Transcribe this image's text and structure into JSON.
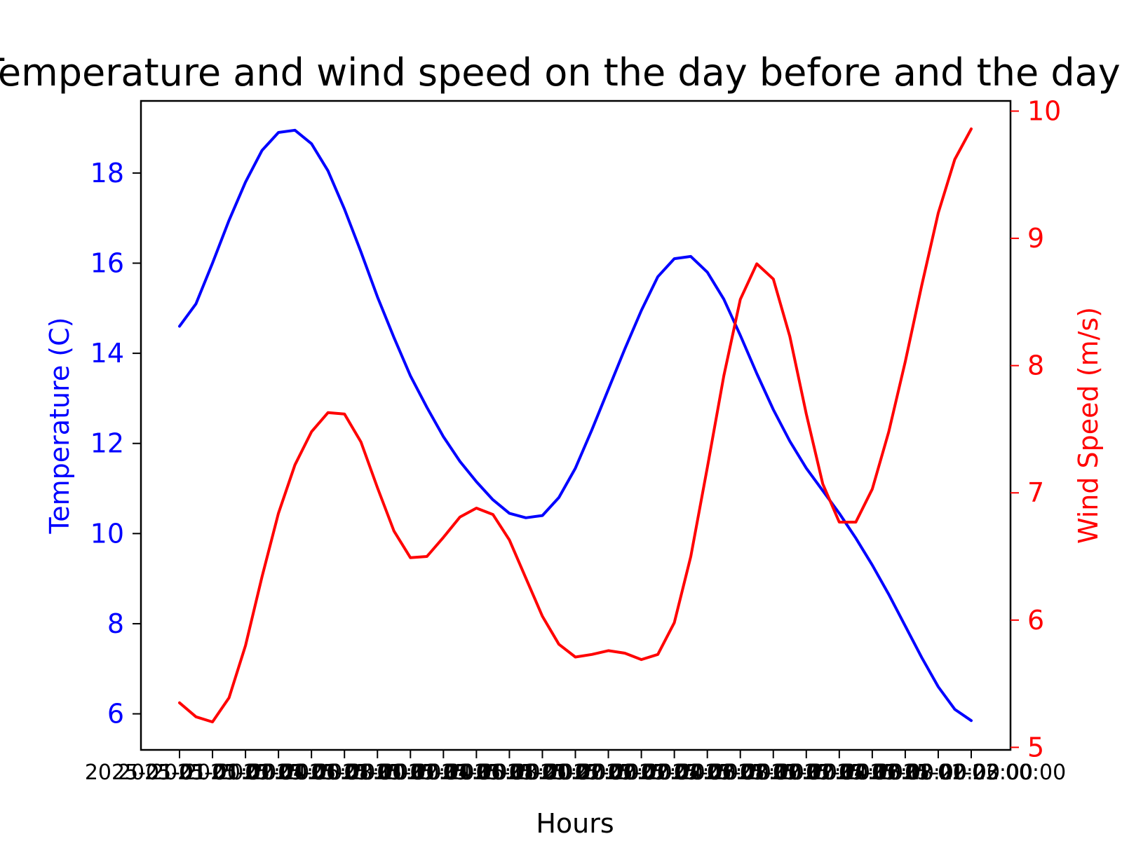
{
  "chart_data": {
    "type": "line",
    "title": "Temperature and wind speed on the day before and the day of",
    "xlabel": "Hours",
    "ylabel_left": "Temperature (C)",
    "ylabel_right": "Wind Speed (m/s)",
    "ylim_left": [
      5.2,
      19.6
    ],
    "ylim_right": [
      4.98,
      10.08
    ],
    "yticks_left": [
      6,
      8,
      10,
      12,
      14,
      16,
      18
    ],
    "yticks_right": [
      5,
      6,
      7,
      8,
      9,
      10
    ],
    "grid": false,
    "legend": "none",
    "colors": {
      "temperature": "#0000ff",
      "wind_speed": "#ff0000",
      "axes": "#000000"
    },
    "x": [
      "2025-01-01 00:00",
      "2025-01-01 01:00",
      "2025-01-01 02:00",
      "2025-01-01 03:00",
      "2025-01-01 04:00",
      "2025-01-01 05:00",
      "2025-01-01 06:00",
      "2025-01-01 07:00",
      "2025-01-01 08:00",
      "2025-01-01 09:00",
      "2025-01-01 10:00",
      "2025-01-01 11:00",
      "2025-01-01 12:00",
      "2025-01-01 13:00",
      "2025-01-01 14:00",
      "2025-01-01 15:00",
      "2025-01-01 16:00",
      "2025-01-01 17:00",
      "2025-01-01 18:00",
      "2025-01-01 19:00",
      "2025-01-01 20:00",
      "2025-01-01 21:00",
      "2025-01-01 22:00",
      "2025-01-01 23:00",
      "2025-01-02 00:00",
      "2025-01-02 01:00",
      "2025-01-02 02:00",
      "2025-01-02 03:00",
      "2025-01-02 04:00",
      "2025-01-02 05:00",
      "2025-01-02 06:00",
      "2025-01-02 07:00",
      "2025-01-02 08:00",
      "2025-01-02 09:00",
      "2025-01-02 10:00",
      "2025-01-02 11:00",
      "2025-01-02 12:00",
      "2025-01-02 13:00",
      "2025-01-02 14:00",
      "2025-01-02 15:00",
      "2025-01-02 16:00",
      "2025-01-02 17:00",
      "2025-01-02 18:00",
      "2025-01-02 19:00",
      "2025-01-02 20:00",
      "2025-01-02 21:00",
      "2025-01-02 22:00",
      "2025-01-02 23:00",
      "2025-01-03 00:00"
    ],
    "series": [
      {
        "name": "Temperature (C)",
        "axis": "left",
        "values": [
          14.6,
          15.1,
          16.0,
          16.95,
          17.8,
          18.5,
          18.9,
          18.95,
          18.65,
          18.05,
          17.2,
          16.25,
          15.25,
          14.35,
          13.5,
          12.8,
          12.15,
          11.6,
          11.15,
          10.75,
          10.45,
          10.35,
          10.4,
          10.8,
          11.45,
          12.3,
          13.2,
          14.1,
          14.95,
          15.7,
          16.1,
          16.15,
          15.8,
          15.2,
          14.4,
          13.55,
          12.75,
          12.05,
          11.45,
          10.95,
          10.45,
          9.9,
          9.3,
          8.65,
          7.95,
          7.25,
          6.6,
          6.1,
          5.85
        ]
      },
      {
        "name": "Wind Speed (m/s)",
        "axis": "right",
        "values": [
          5.35,
          5.24,
          5.2,
          5.39,
          5.8,
          6.34,
          6.84,
          7.22,
          7.48,
          7.63,
          7.62,
          7.4,
          7.04,
          6.7,
          6.49,
          6.5,
          6.65,
          6.81,
          6.88,
          6.83,
          6.63,
          6.33,
          6.03,
          5.81,
          5.71,
          5.73,
          5.76,
          5.74,
          5.69,
          5.73,
          5.98,
          6.5,
          7.2,
          7.92,
          8.52,
          8.8,
          8.68,
          8.23,
          7.62,
          7.07,
          6.77,
          6.77,
          7.03,
          7.48,
          8.03,
          8.63,
          9.2,
          9.62,
          9.86
        ]
      }
    ]
  }
}
